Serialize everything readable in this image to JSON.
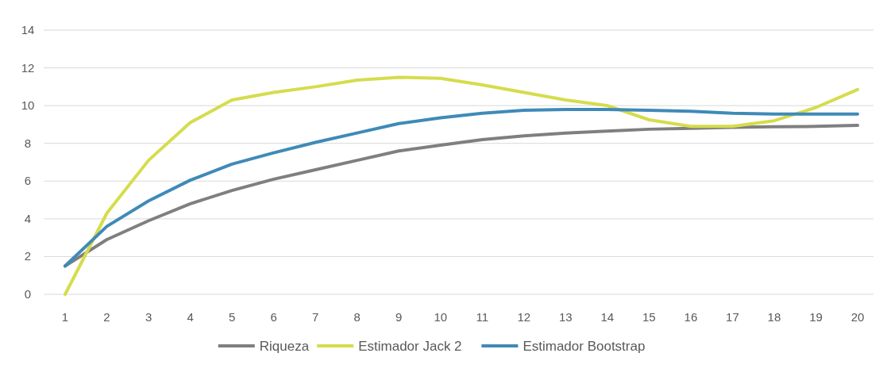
{
  "chart_data": {
    "type": "line",
    "categories": [
      "1",
      "2",
      "3",
      "4",
      "5",
      "6",
      "7",
      "8",
      "9",
      "10",
      "11",
      "12",
      "13",
      "14",
      "15",
      "16",
      "17",
      "18",
      "19",
      "20"
    ],
    "ylim": [
      0,
      14
    ],
    "yticks": [
      0,
      2,
      4,
      6,
      8,
      10,
      12,
      14
    ],
    "grid": "y",
    "legend": "bottom",
    "line_style": "solid",
    "series": [
      {
        "name": "Riqueza",
        "color": "#7f7f7f",
        "values": [
          1.5,
          2.9,
          3.9,
          4.8,
          5.5,
          6.1,
          6.6,
          7.1,
          7.6,
          7.9,
          8.2,
          8.4,
          8.55,
          8.65,
          8.75,
          8.8,
          8.85,
          8.88,
          8.9,
          8.95
        ]
      },
      {
        "name": "Estimador Jack 2",
        "color": "#d6dc4c",
        "values": [
          0,
          4.3,
          7.1,
          9.1,
          10.3,
          10.7,
          11.0,
          11.35,
          11.5,
          11.45,
          11.1,
          10.7,
          10.3,
          10.0,
          9.25,
          8.9,
          8.9,
          9.2,
          9.9,
          10.85
        ]
      },
      {
        "name": "Estimador Bootstrap",
        "color": "#3f8ab8",
        "values": [
          1.5,
          3.6,
          4.95,
          6.05,
          6.9,
          7.5,
          8.05,
          8.55,
          9.05,
          9.35,
          9.6,
          9.75,
          9.8,
          9.8,
          9.75,
          9.7,
          9.6,
          9.55,
          9.55,
          9.55
        ]
      }
    ]
  }
}
